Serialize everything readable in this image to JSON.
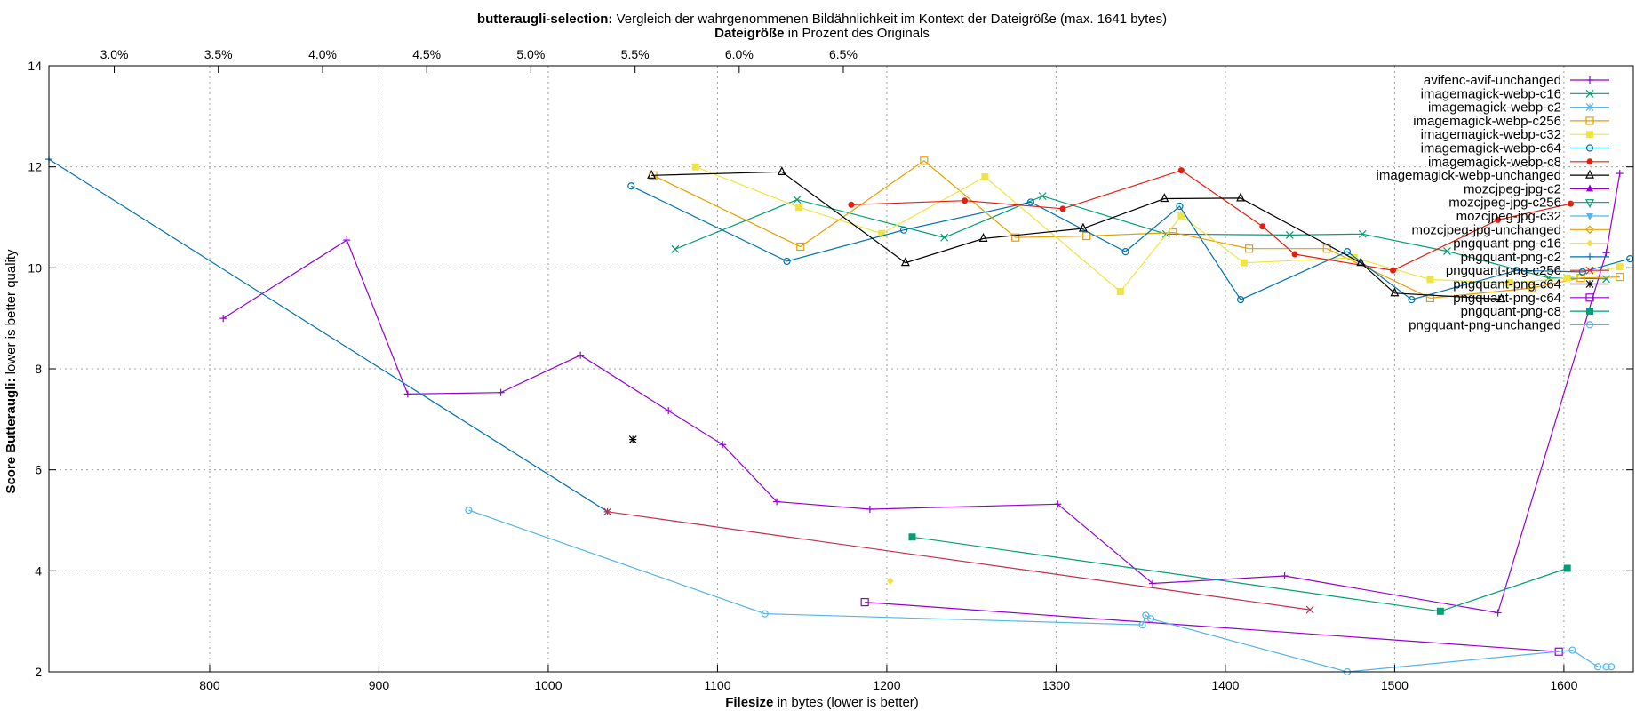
{
  "title": {
    "bold": "butteraugli-selection:",
    "rest": " Vergleich der wahrgenommenen Bildähnlichkeit im Kontext der Dateigröße (max. 1641 bytes)"
  },
  "top_axis_label": {
    "bold": "Dateigröße",
    "rest": " in Prozent des Originals"
  },
  "xlabel": {
    "bold": "Filesize",
    "rest": " in bytes (lower is better)"
  },
  "ylabel": {
    "bold": "Score Butteraugli:",
    "rest": " lower is better quality"
  },
  "chart_data": {
    "type": "line",
    "xlim": [
      705,
      1641
    ],
    "ylim": [
      2,
      14
    ],
    "x_ticks": [
      800,
      900,
      1000,
      1100,
      1200,
      1300,
      1400,
      1500,
      1600
    ],
    "y_ticks": [
      2,
      4,
      6,
      8,
      10,
      12,
      14
    ],
    "top_ticks": [
      "3.0%",
      "3.5%",
      "4.0%",
      "4.5%",
      "5.0%",
      "5.5%",
      "6.0%",
      "6.5%"
    ],
    "top_tick_x": [
      743.6,
      805.1,
      866.7,
      928.2,
      989.7,
      1051.3,
      1112.8,
      1174.3
    ],
    "grid": true,
    "legend_position": "top-right",
    "series": [
      {
        "name": "avifenc-avif-unchanged",
        "color": "#9400d3",
        "marker": "plus",
        "points": [
          [
            808,
            9.0
          ],
          [
            881,
            10.55
          ],
          [
            917,
            7.5
          ],
          [
            972,
            7.53
          ],
          [
            1019,
            8.27
          ],
          [
            1071,
            7.17
          ],
          [
            1103,
            6.5
          ],
          [
            1135,
            5.37
          ],
          [
            1190,
            5.22
          ],
          [
            1301,
            5.32
          ],
          [
            1357,
            3.75
          ],
          [
            1435,
            3.9
          ],
          [
            1561,
            3.17
          ],
          [
            1625,
            10.3
          ],
          [
            1633,
            11.87
          ]
        ]
      },
      {
        "name": "imagemagick-webp-c16",
        "color": "#009e73",
        "marker": "x",
        "points": [
          [
            1075,
            10.37
          ],
          [
            1147,
            11.35
          ],
          [
            1234,
            10.6
          ],
          [
            1292,
            11.42
          ],
          [
            1365,
            10.67
          ],
          [
            1438,
            10.65
          ],
          [
            1481,
            10.67
          ],
          [
            1531,
            10.33
          ],
          [
            1591,
            9.8
          ],
          [
            1625,
            9.78
          ]
        ]
      },
      {
        "name": "imagemagick-webp-c2",
        "color": "#56b4e9",
        "marker": "star",
        "points": []
      },
      {
        "name": "imagemagick-webp-c256",
        "color": "#e69f00",
        "marker": "square-open",
        "points": [
          [
            1062,
            11.83
          ],
          [
            1149,
            10.42
          ],
          [
            1222,
            12.12
          ],
          [
            1276,
            10.6
          ],
          [
            1318,
            10.63
          ],
          [
            1369,
            10.7
          ],
          [
            1414,
            10.38
          ],
          [
            1460,
            10.38
          ],
          [
            1521,
            9.4
          ],
          [
            1581,
            9.6
          ],
          [
            1610,
            9.8
          ],
          [
            1633,
            9.82
          ]
        ]
      },
      {
        "name": "imagemagick-webp-c32",
        "color": "#f0e442",
        "marker": "square",
        "points": [
          [
            1087,
            12.0
          ],
          [
            1148,
            11.2
          ],
          [
            1197,
            10.68
          ],
          [
            1258,
            11.8
          ],
          [
            1338,
            9.53
          ],
          [
            1374,
            11.03
          ],
          [
            1411,
            10.1
          ],
          [
            1476,
            10.2
          ],
          [
            1521,
            9.77
          ],
          [
            1568,
            9.7
          ],
          [
            1602,
            9.8
          ],
          [
            1633,
            10.02
          ]
        ]
      },
      {
        "name": "imagemagick-webp-c64",
        "color": "#0072b2",
        "marker": "circle-open",
        "points": [
          [
            1049,
            11.62
          ],
          [
            1141,
            10.13
          ],
          [
            1210,
            10.75
          ],
          [
            1285,
            11.3
          ],
          [
            1341,
            10.32
          ],
          [
            1373,
            11.22
          ],
          [
            1409,
            9.37
          ],
          [
            1472,
            10.32
          ],
          [
            1510,
            9.37
          ],
          [
            1572,
            9.95
          ],
          [
            1611,
            9.92
          ],
          [
            1639,
            10.18
          ]
        ]
      },
      {
        "name": "imagemagick-webp-c8",
        "color": "#e51e10",
        "marker": "dot",
        "points": [
          [
            1179,
            11.25
          ],
          [
            1246,
            11.33
          ],
          [
            1304,
            11.17
          ],
          [
            1374,
            11.93
          ],
          [
            1422,
            10.82
          ],
          [
            1441,
            10.27
          ],
          [
            1499,
            9.95
          ],
          [
            1561,
            10.95
          ],
          [
            1604,
            11.27
          ]
        ]
      },
      {
        "name": "imagemagick-webp-unchanged",
        "color": "#000000",
        "marker": "triangle-open",
        "points": [
          [
            1061,
            11.83
          ],
          [
            1138,
            11.9
          ],
          [
            1211,
            10.1
          ],
          [
            1257,
            10.58
          ],
          [
            1316,
            10.78
          ],
          [
            1364,
            11.37
          ],
          [
            1409,
            11.38
          ],
          [
            1480,
            10.1
          ],
          [
            1500,
            9.5
          ],
          [
            1563,
            9.38
          ]
        ]
      },
      {
        "name": "mozcjpeg-jpg-c2",
        "color": "#9400d3",
        "marker": "triangle",
        "points": []
      },
      {
        "name": "mozcjpeg-jpg-c256",
        "color": "#009e73",
        "marker": "triangle-down-open",
        "points": []
      },
      {
        "name": "mozcjpeg-jpg-c32",
        "color": "#56b4e9",
        "marker": "triangle-down",
        "points": []
      },
      {
        "name": "mozcjpeg-jpg-unchanged",
        "color": "#e69f00",
        "marker": "diamond-open",
        "points": []
      },
      {
        "name": "pngquant-png-c16",
        "color": "#f0e442",
        "marker": "diamond",
        "points": [
          [
            1202,
            3.8
          ]
        ]
      },
      {
        "name": "pngquant-png-c2",
        "color": "#0072b2",
        "marker": "plus",
        "points": [
          [
            705,
            12.15
          ],
          [
            1035,
            5.17
          ]
        ]
      },
      {
        "name": "pngquant-png-c256",
        "color": "#c0304a",
        "marker": "x",
        "points": [
          [
            1035,
            5.17
          ],
          [
            1450,
            3.23
          ]
        ]
      },
      {
        "name": "pngquant-png-c64",
        "color": "#000000",
        "marker": "star",
        "points": [
          [
            1050,
            6.6
          ]
        ]
      },
      {
        "name": "pngquant-png-c64",
        "color": "#9400d3",
        "marker": "square-open",
        "points": [
          [
            1187,
            3.38
          ],
          [
            1597,
            2.4
          ]
        ]
      },
      {
        "name": "pngquant-png-c8",
        "color": "#009e73",
        "marker": "square",
        "points": [
          [
            1215,
            4.67
          ],
          [
            1527,
            3.2
          ],
          [
            1602,
            4.05
          ]
        ]
      },
      {
        "name": "pngquant-png-unchanged",
        "color": "#56b4e9",
        "marker": "circle-open",
        "points": [
          [
            953,
            5.2
          ],
          [
            1128,
            3.15
          ],
          [
            1351,
            2.93
          ],
          [
            1353,
            3.12
          ],
          [
            1356,
            3.05
          ],
          [
            1472,
            2.0
          ],
          [
            1605,
            2.43
          ],
          [
            1620,
            2.1
          ],
          [
            1625,
            2.1
          ],
          [
            1628,
            2.1
          ]
        ]
      }
    ]
  }
}
